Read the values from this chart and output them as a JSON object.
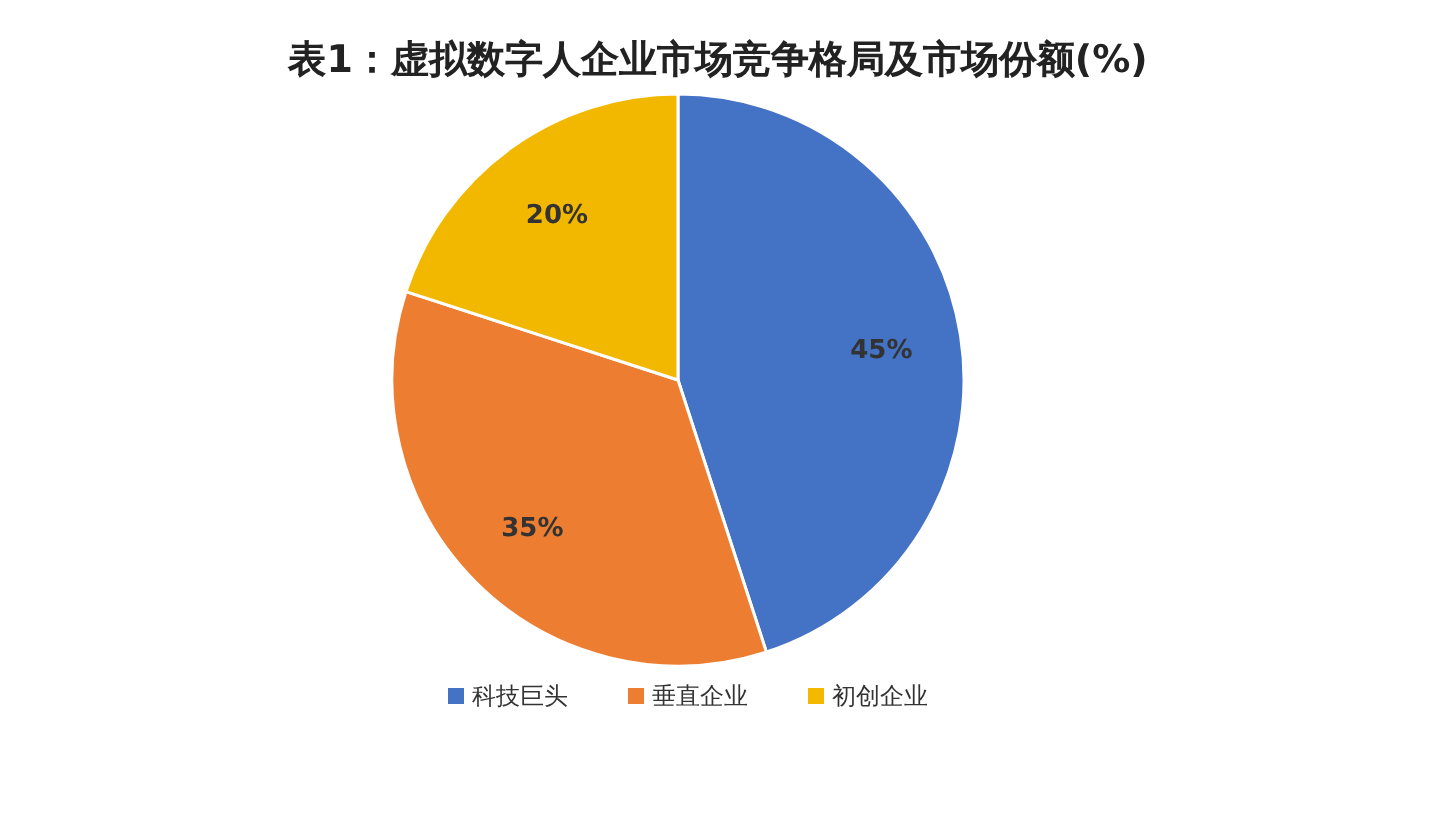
{
  "chart_data": {
    "type": "pie",
    "title": "表1：虚拟数字人企业市场竞争格局及市场份额(%)",
    "categories": [
      "科技巨头",
      "垂直企业",
      "初创企业"
    ],
    "values": [
      45,
      35,
      20
    ],
    "colors": [
      "#4472c4",
      "#ed7d31",
      "#f2b800"
    ],
    "value_labels": [
      "45%",
      "35%",
      "20%"
    ],
    "legend": "bottom"
  }
}
